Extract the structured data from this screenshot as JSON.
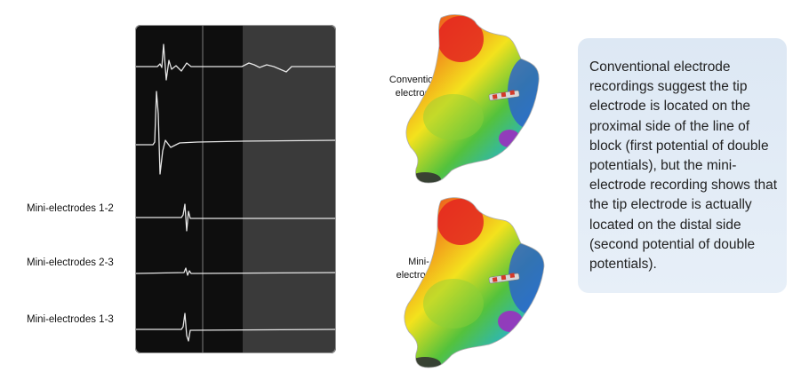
{
  "traces": {
    "labels": [
      "Mini-electrodes 1-2",
      "Mini-electrodes 2-3",
      "Mini-electrodes 1-3"
    ]
  },
  "maps": {
    "top_label_line1": "Conventional",
    "top_label_line2": "electrodes",
    "bottom_label_line1": "Mini-",
    "bottom_label_line2": "electrodes"
  },
  "description": "Conventional electrode recordings suggest the tip electrode is located on the proximal side of the line of block (first potential of double potentials), but the mini-electrode recording shows that the tip electrode is actually located on the distal side (second potential of double potentials).",
  "colors": {
    "panel_dark": "#0e0e0e",
    "panel_light": "#3a3a3a",
    "trace": "#e6e6e6",
    "textbox": "#e1ebf6"
  }
}
